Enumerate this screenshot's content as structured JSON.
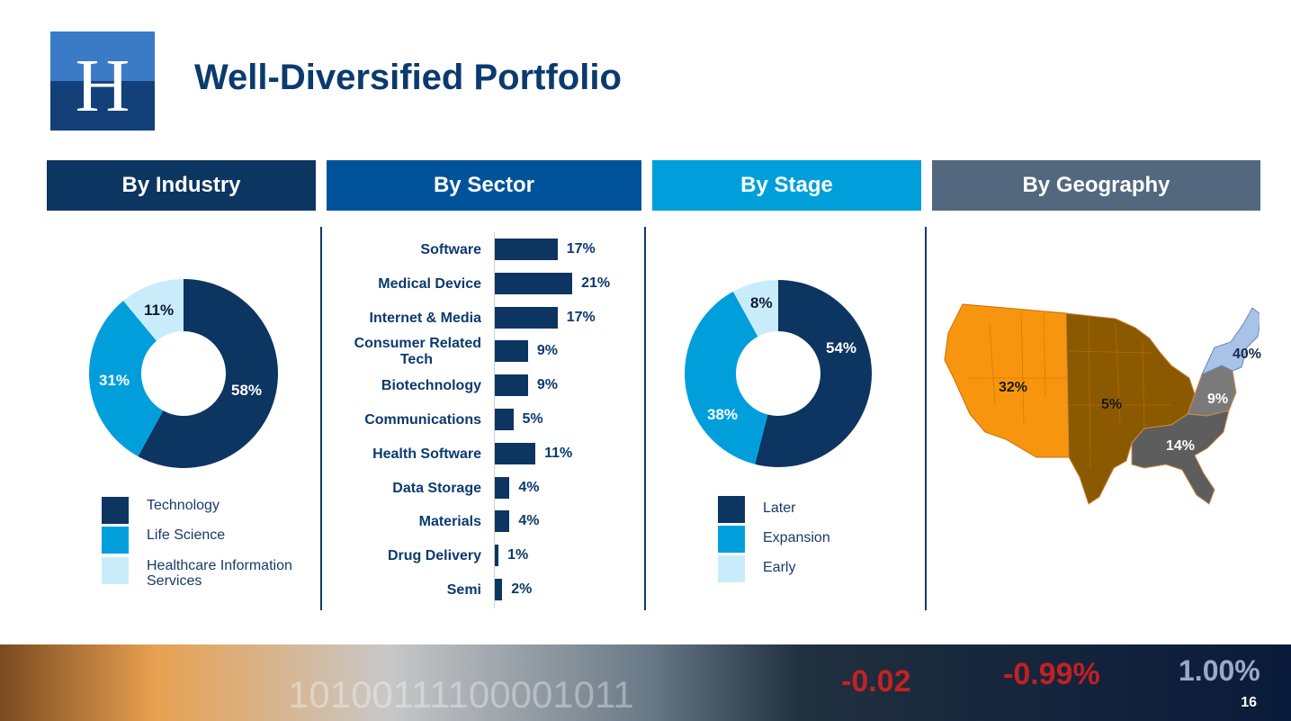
{
  "title": "Well-Diversified Portfolio",
  "logo": {
    "letter": "H"
  },
  "headers": {
    "industry": "By Industry",
    "sector": "By Sector",
    "stage": "By Stage",
    "geography": "By Geography"
  },
  "colors": {
    "dark_navy": "#0d3561",
    "mid_blue": "#00539b",
    "light_blue": "#009fdc",
    "pale_blue": "#c9ecfb",
    "slate": "#53687f",
    "orange": "#f7960e",
    "brown": "#8b5a00",
    "gray": "#5d5d5d",
    "ne_blue": "#a9c2e8"
  },
  "chart_data": [
    {
      "type": "pie",
      "title": "By Industry",
      "categories": [
        "Technology",
        "Life Science",
        "Healthcare Information Services"
      ],
      "values": [
        58,
        31,
        11
      ],
      "labels": [
        "58%",
        "31%",
        "11%"
      ],
      "colors": [
        "#0d3561",
        "#009fdc",
        "#c9ecfb"
      ]
    },
    {
      "type": "bar",
      "title": "By Sector",
      "categories": [
        "Software",
        "Medical Device",
        "Internet & Media",
        "Consumer Related Tech",
        "Biotechnology",
        "Communications",
        "Health Software",
        "Data Storage",
        "Materials",
        "Drug Delivery",
        "Semi"
      ],
      "display_labels": [
        [
          "Software"
        ],
        [
          "Medical Device"
        ],
        [
          "Internet & Media"
        ],
        [
          "Consumer Related",
          "Tech"
        ],
        [
          "Biotechnology"
        ],
        [
          "Communications"
        ],
        [
          "Health Software"
        ],
        [
          "Data Storage"
        ],
        [
          "Materials"
        ],
        [
          "Drug Delivery"
        ],
        [
          "Semi"
        ]
      ],
      "values": [
        17,
        21,
        17,
        9,
        9,
        5,
        11,
        4,
        4,
        1,
        2
      ],
      "value_labels": [
        "17%",
        "21%",
        "17%",
        "9%",
        "9%",
        "5%",
        "11%",
        "4%",
        "4%",
        "1%",
        "2%"
      ],
      "unit": "%",
      "orientation": "horizontal"
    },
    {
      "type": "pie",
      "title": "By Stage",
      "categories": [
        "Later",
        "Expansion",
        "Early"
      ],
      "values": [
        54,
        38,
        8
      ],
      "labels": [
        "54%",
        "38%",
        "8%"
      ],
      "colors": [
        "#0d3561",
        "#009fdc",
        "#c9ecfb"
      ]
    },
    {
      "type": "map",
      "title": "By Geography",
      "regions": [
        "West",
        "Central",
        "Southeast",
        "Mid-Atlantic",
        "Northeast"
      ],
      "values": [
        32,
        5,
        14,
        9,
        40
      ],
      "labels": [
        "32%",
        "5%",
        "14%",
        "9%",
        "40%"
      ]
    }
  ],
  "footer": {
    "tickers": [
      "-0.02",
      "-0.99%",
      "1.00%"
    ],
    "binary": "10100111100001011",
    "page_number": "16"
  }
}
